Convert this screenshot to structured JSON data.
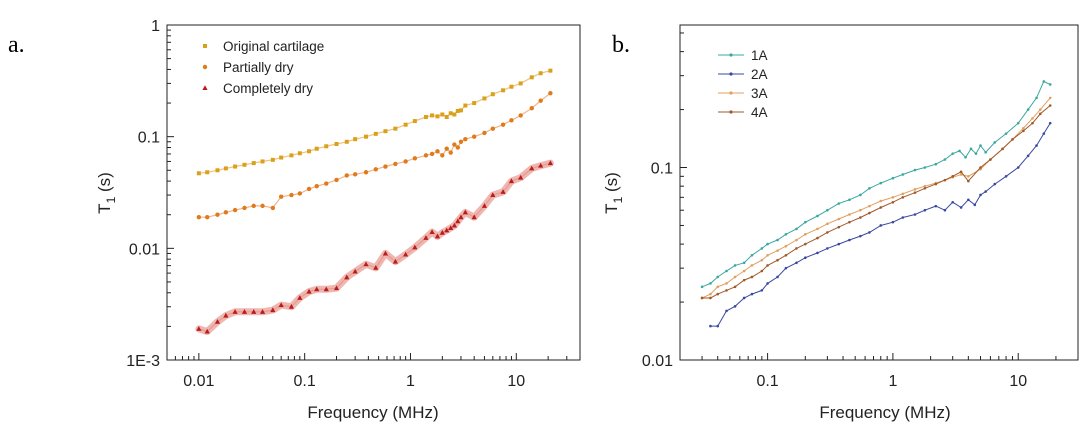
{
  "chart_data": [
    {
      "panel_label": "a.",
      "type": "scatter",
      "xlabel": "Frequency (MHz)",
      "ylabel": "T1 (s)",
      "ylabel_main": "T",
      "ylabel_sub": "1",
      "ylabel_unit": " (s)",
      "xscale": "log",
      "yscale": "log",
      "xlim": [
        0.005,
        40
      ],
      "ylim": [
        0.001,
        1
      ],
      "xticks": [
        {
          "value": 0.01,
          "label": "0.01"
        },
        {
          "value": 0.1,
          "label": "0.1"
        },
        {
          "value": 1,
          "label": "1"
        },
        {
          "value": 10,
          "label": "10"
        }
      ],
      "yticks": [
        {
          "value": 0.001,
          "label": "1E-3"
        },
        {
          "value": 0.01,
          "label": "0.01"
        },
        {
          "value": 0.1,
          "label": "0.1"
        },
        {
          "value": 1,
          "label": "1"
        }
      ],
      "legend_position": "top-left",
      "series": [
        {
          "name": "Original cartilage",
          "color": "#d9a11a",
          "line_color": "#f0c27a",
          "marker": "square",
          "x": [
            0.01,
            0.012,
            0.015,
            0.018,
            0.022,
            0.027,
            0.033,
            0.04,
            0.05,
            0.06,
            0.075,
            0.09,
            0.11,
            0.13,
            0.16,
            0.2,
            0.25,
            0.3,
            0.38,
            0.47,
            0.58,
            0.72,
            0.9,
            1.1,
            1.4,
            1.6,
            1.8,
            2.0,
            2.2,
            2.4,
            2.6,
            2.8,
            3.0,
            3.3,
            4.0,
            5.0,
            6.0,
            7.5,
            9.0,
            11,
            14,
            17,
            21
          ],
          "y": [
            0.047,
            0.048,
            0.05,
            0.052,
            0.054,
            0.056,
            0.058,
            0.06,
            0.062,
            0.065,
            0.068,
            0.071,
            0.074,
            0.078,
            0.082,
            0.086,
            0.09,
            0.095,
            0.1,
            0.106,
            0.112,
            0.118,
            0.128,
            0.138,
            0.15,
            0.155,
            0.152,
            0.158,
            0.15,
            0.162,
            0.158,
            0.17,
            0.172,
            0.19,
            0.2,
            0.22,
            0.24,
            0.26,
            0.28,
            0.3,
            0.34,
            0.37,
            0.39
          ]
        },
        {
          "name": "Partially dry",
          "color": "#e07a1a",
          "line_color": "#f0b48a",
          "marker": "circle",
          "x": [
            0.01,
            0.012,
            0.015,
            0.018,
            0.022,
            0.027,
            0.033,
            0.04,
            0.05,
            0.06,
            0.075,
            0.09,
            0.11,
            0.13,
            0.16,
            0.2,
            0.25,
            0.3,
            0.38,
            0.47,
            0.58,
            0.72,
            0.9,
            1.1,
            1.4,
            1.6,
            1.8,
            2.0,
            2.2,
            2.4,
            2.6,
            2.8,
            3.0,
            3.3,
            4.0,
            5.0,
            6.0,
            7.5,
            9.0,
            11,
            14,
            17,
            21
          ],
          "y": [
            0.019,
            0.019,
            0.02,
            0.021,
            0.022,
            0.023,
            0.024,
            0.024,
            0.023,
            0.029,
            0.03,
            0.031,
            0.034,
            0.036,
            0.038,
            0.041,
            0.045,
            0.046,
            0.048,
            0.051,
            0.054,
            0.057,
            0.06,
            0.064,
            0.068,
            0.07,
            0.074,
            0.068,
            0.078,
            0.072,
            0.085,
            0.08,
            0.09,
            0.095,
            0.1,
            0.108,
            0.118,
            0.128,
            0.14,
            0.155,
            0.18,
            0.21,
            0.245
          ]
        },
        {
          "name": "Completely dry",
          "color": "#b81c1c",
          "line_color": "#e89a90",
          "marker": "triangle",
          "x": [
            0.01,
            0.012,
            0.015,
            0.018,
            0.022,
            0.027,
            0.033,
            0.04,
            0.05,
            0.06,
            0.075,
            0.09,
            0.11,
            0.13,
            0.16,
            0.2,
            0.25,
            0.3,
            0.38,
            0.47,
            0.58,
            0.72,
            0.9,
            1.1,
            1.4,
            1.6,
            1.8,
            2.0,
            2.2,
            2.4,
            2.6,
            2.8,
            3.0,
            3.3,
            4.0,
            5.0,
            6.0,
            7.5,
            9.0,
            11,
            14,
            17,
            21
          ],
          "y": [
            0.0019,
            0.0018,
            0.0022,
            0.0025,
            0.0027,
            0.0027,
            0.0027,
            0.0027,
            0.0028,
            0.0031,
            0.003,
            0.0036,
            0.0041,
            0.0043,
            0.0043,
            0.0044,
            0.0055,
            0.0062,
            0.0072,
            0.0067,
            0.009,
            0.0076,
            0.0088,
            0.0102,
            0.0124,
            0.014,
            0.0128,
            0.0138,
            0.0145,
            0.0152,
            0.016,
            0.0175,
            0.019,
            0.021,
            0.019,
            0.024,
            0.03,
            0.032,
            0.04,
            0.043,
            0.052,
            0.055,
            0.058
          ]
        }
      ]
    },
    {
      "panel_label": "b.",
      "type": "line",
      "xlabel": "Frequency (MHz)",
      "ylabel": "T1 (s)",
      "ylabel_main": "T",
      "ylabel_sub": "1",
      "ylabel_unit": " (s)",
      "xscale": "log",
      "yscale": "log",
      "xlim": [
        0.02,
        30
      ],
      "ylim": [
        0.01,
        0.55
      ],
      "xticks": [
        {
          "value": 0.1,
          "label": "0.1"
        },
        {
          "value": 1,
          "label": "1"
        },
        {
          "value": 10,
          "label": "10"
        }
      ],
      "yticks": [
        {
          "value": 0.01,
          "label": "0.01"
        },
        {
          "value": 0.1,
          "label": "0.1"
        }
      ],
      "legend_position": "top-left",
      "series": [
        {
          "name": "1A",
          "color": "#3aa8a0",
          "x": [
            0.03,
            0.035,
            0.04,
            0.047,
            0.055,
            0.065,
            0.075,
            0.09,
            0.1,
            0.12,
            0.14,
            0.17,
            0.2,
            0.25,
            0.3,
            0.37,
            0.45,
            0.55,
            0.65,
            0.8,
            1.0,
            1.2,
            1.5,
            1.8,
            2.2,
            2.6,
            3.0,
            3.4,
            3.8,
            4.2,
            4.6,
            5.0,
            5.5,
            6.5,
            8.0,
            10,
            12,
            14,
            16,
            18
          ],
          "y": [
            0.024,
            0.025,
            0.027,
            0.029,
            0.031,
            0.032,
            0.035,
            0.038,
            0.04,
            0.042,
            0.045,
            0.048,
            0.052,
            0.056,
            0.06,
            0.065,
            0.068,
            0.072,
            0.078,
            0.083,
            0.088,
            0.092,
            0.097,
            0.1,
            0.104,
            0.11,
            0.118,
            0.122,
            0.113,
            0.125,
            0.118,
            0.13,
            0.12,
            0.135,
            0.15,
            0.17,
            0.2,
            0.23,
            0.28,
            0.27
          ]
        },
        {
          "name": "2A",
          "color": "#3a49a0",
          "x": [
            0.035,
            0.04,
            0.047,
            0.055,
            0.065,
            0.075,
            0.09,
            0.1,
            0.12,
            0.14,
            0.17,
            0.2,
            0.25,
            0.3,
            0.37,
            0.45,
            0.55,
            0.65,
            0.8,
            1.0,
            1.2,
            1.5,
            1.8,
            2.2,
            2.6,
            3.0,
            3.5,
            4.0,
            4.5,
            5.0,
            5.5,
            6.5,
            8.0,
            10,
            12,
            14,
            16,
            18
          ],
          "y": [
            0.015,
            0.015,
            0.018,
            0.019,
            0.021,
            0.022,
            0.023,
            0.025,
            0.027,
            0.03,
            0.032,
            0.034,
            0.036,
            0.038,
            0.04,
            0.042,
            0.044,
            0.046,
            0.05,
            0.052,
            0.055,
            0.057,
            0.06,
            0.063,
            0.06,
            0.066,
            0.062,
            0.068,
            0.064,
            0.072,
            0.075,
            0.082,
            0.09,
            0.1,
            0.115,
            0.13,
            0.15,
            0.17
          ]
        },
        {
          "name": "3A",
          "color": "#e0a060",
          "x": [
            0.03,
            0.035,
            0.04,
            0.047,
            0.055,
            0.065,
            0.075,
            0.09,
            0.1,
            0.12,
            0.14,
            0.17,
            0.2,
            0.25,
            0.3,
            0.37,
            0.45,
            0.55,
            0.65,
            0.8,
            1.0,
            1.2,
            1.5,
            1.8,
            2.2,
            2.6,
            3.0,
            3.5,
            4.0,
            5.0,
            6.0,
            7.5,
            9.0,
            11,
            13,
            15,
            18
          ],
          "y": [
            0.021,
            0.022,
            0.024,
            0.025,
            0.027,
            0.029,
            0.031,
            0.033,
            0.035,
            0.037,
            0.039,
            0.042,
            0.045,
            0.048,
            0.051,
            0.054,
            0.057,
            0.06,
            0.063,
            0.067,
            0.07,
            0.073,
            0.077,
            0.08,
            0.083,
            0.086,
            0.089,
            0.092,
            0.09,
            0.098,
            0.11,
            0.125,
            0.14,
            0.16,
            0.18,
            0.2,
            0.23
          ]
        },
        {
          "name": "4A",
          "color": "#a05a2a",
          "x": [
            0.03,
            0.035,
            0.04,
            0.047,
            0.055,
            0.065,
            0.075,
            0.09,
            0.1,
            0.12,
            0.14,
            0.17,
            0.2,
            0.25,
            0.3,
            0.37,
            0.45,
            0.55,
            0.65,
            0.8,
            1.0,
            1.2,
            1.5,
            1.8,
            2.2,
            2.6,
            3.0,
            3.5,
            4.0,
            5.0,
            6.0,
            7.5,
            9.0,
            11,
            13,
            15,
            18
          ],
          "y": [
            0.021,
            0.021,
            0.022,
            0.023,
            0.024,
            0.026,
            0.027,
            0.029,
            0.031,
            0.033,
            0.035,
            0.038,
            0.04,
            0.043,
            0.046,
            0.049,
            0.052,
            0.055,
            0.058,
            0.062,
            0.066,
            0.07,
            0.074,
            0.078,
            0.082,
            0.086,
            0.09,
            0.095,
            0.085,
            0.1,
            0.11,
            0.125,
            0.14,
            0.155,
            0.17,
            0.19,
            0.21
          ]
        }
      ]
    }
  ]
}
